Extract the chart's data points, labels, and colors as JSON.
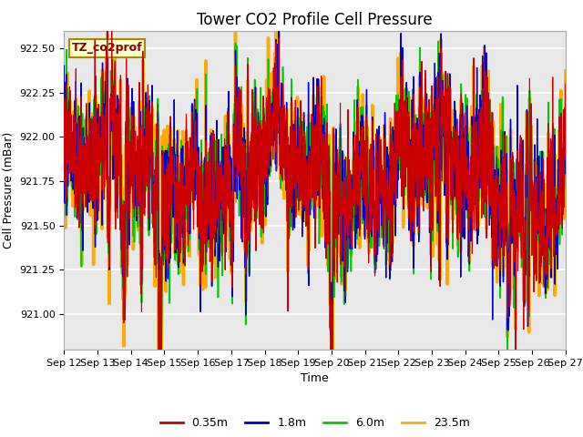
{
  "title": "Tower CO2 Profile Cell Pressure",
  "ylabel": "Cell Pressure (mBar)",
  "xlabel": "Time",
  "annotation": "TZ_co2prof",
  "ylim": [
    920.8,
    922.6
  ],
  "xlim": [
    0,
    360
  ],
  "x_tick_labels": [
    "Sep 12",
    "Sep 13",
    "Sep 14",
    "Sep 15",
    "Sep 16",
    "Sep 17",
    "Sep 18",
    "Sep 19",
    "Sep 20",
    "Sep 21",
    "Sep 22",
    "Sep 23",
    "Sep 24",
    "Sep 25",
    "Sep 26",
    "Sep 27"
  ],
  "x_tick_positions": [
    0,
    24,
    48,
    72,
    96,
    120,
    144,
    168,
    192,
    216,
    240,
    264,
    288,
    312,
    336,
    360
  ],
  "series_colors": [
    "#cc0000",
    "#0000cc",
    "#00cc00",
    "#ffaa00"
  ],
  "series_labels": [
    "0.35m",
    "1.8m",
    "6.0m",
    "23.5m"
  ],
  "plot_bg_color": "#e8e8e8",
  "grid_color": "#ffffff",
  "n_points": 2000,
  "base_pressure": 921.8,
  "title_fontsize": 12,
  "axis_fontsize": 9,
  "tick_fontsize": 8,
  "legend_fontsize": 9,
  "annotation_color": "#880000",
  "annotation_bg": "#ffffcc",
  "annotation_edge": "#aa8800"
}
